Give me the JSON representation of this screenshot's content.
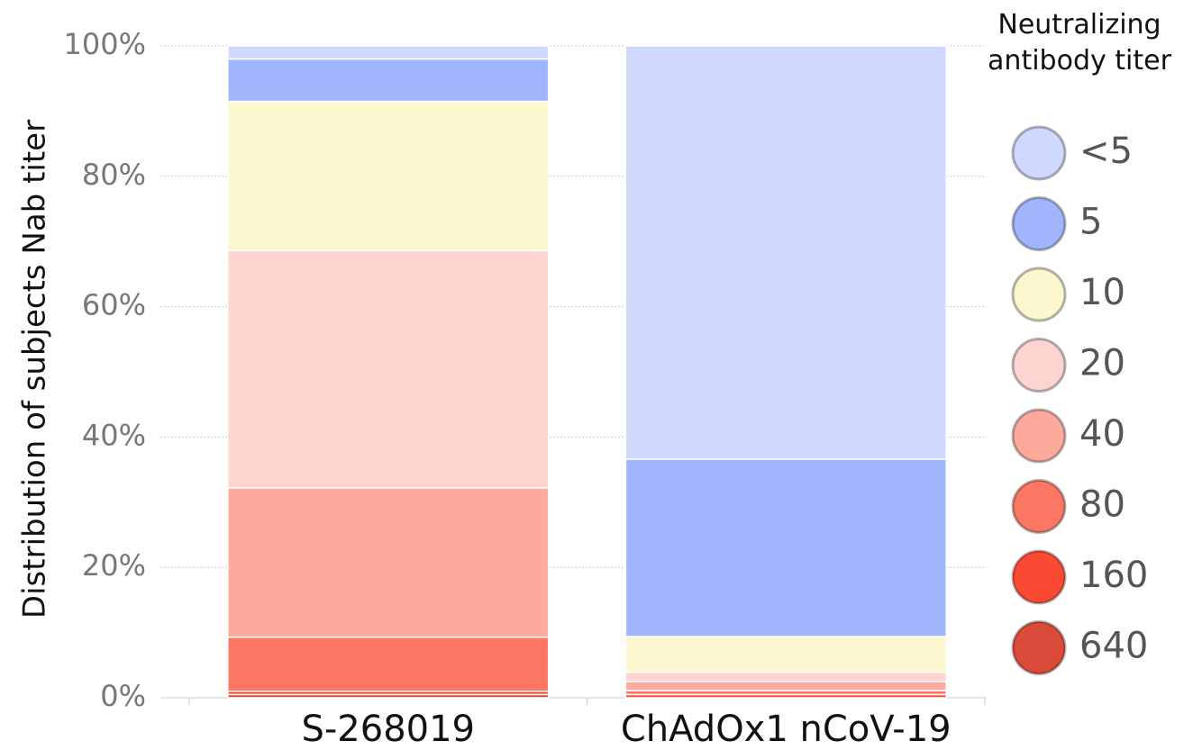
{
  "chart_data": {
    "type": "stacked_bar",
    "y_label": "Distribution of subjects Nab titer",
    "legend_title": "Neutralizing antibody titer",
    "categories": [
      "S-268019",
      "ChAdOx1 nCoV-19"
    ],
    "ylim": [
      0,
      100
    ],
    "yticks": [
      {
        "value": 0,
        "label": "0%"
      },
      {
        "value": 20,
        "label": "20%"
      },
      {
        "value": 40,
        "label": "40%"
      },
      {
        "value": 60,
        "label": "60%"
      },
      {
        "value": 80,
        "label": "80%"
      },
      {
        "value": 100,
        "label": "100%"
      }
    ],
    "grid": true,
    "legend": "right",
    "series": [
      {
        "name": "<5",
        "color": "#cfd9fd",
        "values": [
          2.0,
          63.4
        ]
      },
      {
        "name": "5",
        "color": "#a0b5fc",
        "values": [
          6.5,
          27.2
        ]
      },
      {
        "name": "10",
        "color": "#fdf7cf",
        "values": [
          22.9,
          5.5
        ]
      },
      {
        "name": "20",
        "color": "#fdd4d0",
        "values": [
          36.4,
          1.4
        ]
      },
      {
        "name": "40",
        "color": "#fda99c",
        "values": [
          22.9,
          1.4
        ]
      },
      {
        "name": "80",
        "color": "#fc7664",
        "values": [
          8.3,
          0.6
        ]
      },
      {
        "name": "160",
        "color": "#fa4a33",
        "values": [
          0.5,
          0.5
        ]
      },
      {
        "name": "640",
        "color": "#d94a38",
        "values": [
          0.5,
          0
        ]
      }
    ]
  }
}
